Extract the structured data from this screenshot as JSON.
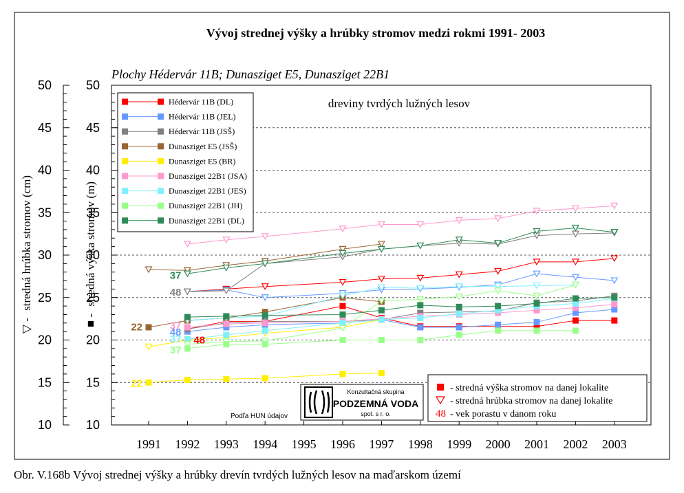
{
  "figure": {
    "title": "Vývoj strednej výšky a hrúbky stromov medzi rokmi 1991- 2003",
    "subtitle": "Plochy Hédervár 11B; Dunasziget E5, Dunasziget 22B1",
    "inner_title": "dreviny tvrdých lužných lesov",
    "source_note": "Podľa HUN údajov",
    "caption": "Obr. V.168b Vývoj strednej výšky a hrúbky drevín tvrdých lužných lesov na maďarskom území",
    "logo": {
      "line1": "Konzultačná skupina",
      "line2": "PODZEMNÁ VODA",
      "line3": "spol. s r. o."
    }
  },
  "chart_data": {
    "type": "line",
    "x": [
      1991,
      1992,
      1993,
      1994,
      1995,
      1996,
      1997,
      1998,
      1999,
      2000,
      2001,
      2002,
      2003
    ],
    "xticks": [
      "1991",
      "1992",
      "1993",
      "1994",
      "1995",
      "1996",
      "1997",
      "1998",
      "1999",
      "2000",
      "2001",
      "2002",
      "2003"
    ],
    "ylim": [
      10,
      50
    ],
    "yticks": [
      "10",
      "15",
      "20",
      "25",
      "30",
      "35",
      "40",
      "45",
      "50"
    ],
    "ylabel_left": "stredná hrúbka stromov (cm)",
    "ylabel_right": "stredná výška stromov (m)",
    "grid": "dashed horizontal at 20, 25, 30, 35, 40, 45",
    "legend_position": "top-left",
    "series": [
      {
        "name": "Hédervár 11B (DL)",
        "color": "#ff0000",
        "height": [
          null,
          21.3,
          22.2,
          22.2,
          null,
          24.0,
          22.6,
          21.6,
          21.6,
          21.6,
          21.6,
          22.3,
          22.3
        ],
        "diameter": [
          null,
          25.7,
          26.0,
          26.3,
          null,
          26.8,
          27.2,
          27.3,
          27.7,
          28.1,
          29.2,
          29.2,
          29.6
        ]
      },
      {
        "name": "Hédervár 11B (JEL)",
        "color": "#6699ff",
        "height": [
          null,
          21.0,
          21.5,
          21.8,
          null,
          22.0,
          22.4,
          21.5,
          21.5,
          21.8,
          22.1,
          23.2,
          23.6
        ],
        "diameter": [
          null,
          25.7,
          25.9,
          25.0,
          null,
          25.5,
          25.9,
          26.0,
          26.2,
          26.5,
          27.8,
          27.4,
          27.0
        ]
      },
      {
        "name": "Hédervár 11B (JSŠ)",
        "color": "#808080",
        "height": [
          null,
          21.3,
          22.0,
          22.2,
          null,
          22.2,
          22.4,
          23.2,
          23.3,
          23.4,
          24.4,
          24.6,
          25.2
        ],
        "diameter": [
          null,
          25.7,
          25.8,
          29.0,
          null,
          29.8,
          30.7,
          31.1,
          31.4,
          31.3,
          32.3,
          32.5,
          32.6
        ]
      },
      {
        "name": "Dunasziget E5 (JSŠ)",
        "color": "#996633",
        "height": [
          21.5,
          22.3,
          22.6,
          23.3,
          null,
          25.0,
          24.5,
          null,
          null,
          null,
          null,
          null,
          null
        ],
        "diameter": [
          28.3,
          28.2,
          28.8,
          29.3,
          null,
          30.7,
          31.3,
          null,
          null,
          null,
          null,
          null,
          null
        ]
      },
      {
        "name": "Dunasziget E5 (BR)",
        "color": "#ffee00",
        "height": [
          15.0,
          15.3,
          15.4,
          15.5,
          null,
          16.0,
          16.1,
          null,
          null,
          null,
          null,
          null,
          null
        ],
        "diameter": [
          19.2,
          20.0,
          20.3,
          20.8,
          null,
          21.5,
          22.4,
          null,
          null,
          null,
          null,
          null,
          null
        ]
      },
      {
        "name": "Dunasziget 22B1 (JSA)",
        "color": "#ff99cc",
        "height": [
          null,
          21.5,
          21.9,
          22.0,
          null,
          22.2,
          22.5,
          22.8,
          23.0,
          23.2,
          23.5,
          23.8,
          24.2
        ],
        "diameter": [
          null,
          31.3,
          31.8,
          32.2,
          null,
          33.1,
          33.6,
          33.6,
          34.1,
          34.3,
          35.2,
          35.5,
          35.8
        ]
      },
      {
        "name": "Dunasziget 22B1 (JES)",
        "color": "#80f0ff",
        "height": [
          null,
          20.1,
          20.6,
          21.1,
          null,
          22.0,
          22.4,
          22.6,
          23.1,
          23.5,
          24.0,
          24.3,
          24.9
        ],
        "diameter": [
          null,
          22.3,
          22.6,
          22.8,
          null,
          25.2,
          26.2,
          26.1,
          26.3,
          26.3,
          26.4,
          26.5,
          null
        ]
      },
      {
        "name": "Dunasziget 22B1 (JH)",
        "color": "#99ff88",
        "height": [
          null,
          19.0,
          19.5,
          19.5,
          null,
          20.0,
          20.0,
          20.0,
          20.6,
          21.1,
          21.1,
          21.1,
          null
        ],
        "diameter": [
          null,
          19.5,
          19.8,
          19.9,
          null,
          21.4,
          24.6,
          24.8,
          25.1,
          25.8,
          25.2,
          26.5,
          null
        ]
      },
      {
        "name": "Dunasziget 22B1 (DL)",
        "color": "#2e8b57",
        "height": [
          null,
          22.7,
          22.8,
          22.9,
          null,
          23.0,
          23.5,
          24.1,
          23.9,
          24.0,
          24.3,
          24.9,
          25.0
        ],
        "diameter": [
          null,
          27.8,
          28.5,
          29.0,
          null,
          30.2,
          30.7,
          31.1,
          31.8,
          31.4,
          32.8,
          33.2,
          32.7
        ]
      }
    ],
    "age_labels": [
      {
        "text": "22",
        "color": "#996633",
        "x": 1991,
        "y": 21.6
      },
      {
        "text": "22",
        "color": "#ffee00",
        "x": 1991,
        "y": 15.0
      },
      {
        "text": "37",
        "color": "#2e8b57",
        "x": 1992,
        "y": 27.7
      },
      {
        "text": "48",
        "color": "#808080",
        "x": 1992,
        "y": 25.7
      },
      {
        "text": "37",
        "color": "#ff99cc",
        "x": 1992,
        "y": 21.8
      },
      {
        "text": "48",
        "color": "#6699ff",
        "x": 1992,
        "y": 21.0
      },
      {
        "text": "37",
        "color": "#80f0ff",
        "x": 1992,
        "y": 20.2
      },
      {
        "text": "48",
        "color": "#ff0000",
        "x": 1992,
        "y": 20.1
      },
      {
        "text": "37",
        "color": "#99ff88",
        "x": 1992,
        "y": 18.9
      }
    ],
    "marker_legend": [
      {
        "symbol": "■",
        "color": "#ff0000",
        "text": "- stredná výška stromov na danej lokalite"
      },
      {
        "symbol": "▽",
        "color": "#ff0000",
        "text": "- stredná hrúbka stromov na danej lokalite"
      },
      {
        "symbol": "48",
        "color": "#ff0000",
        "text": "- vek porastu v danom roku"
      }
    ],
    "axis_symbols": {
      "left": "▽ -",
      "right": "■ -"
    }
  }
}
